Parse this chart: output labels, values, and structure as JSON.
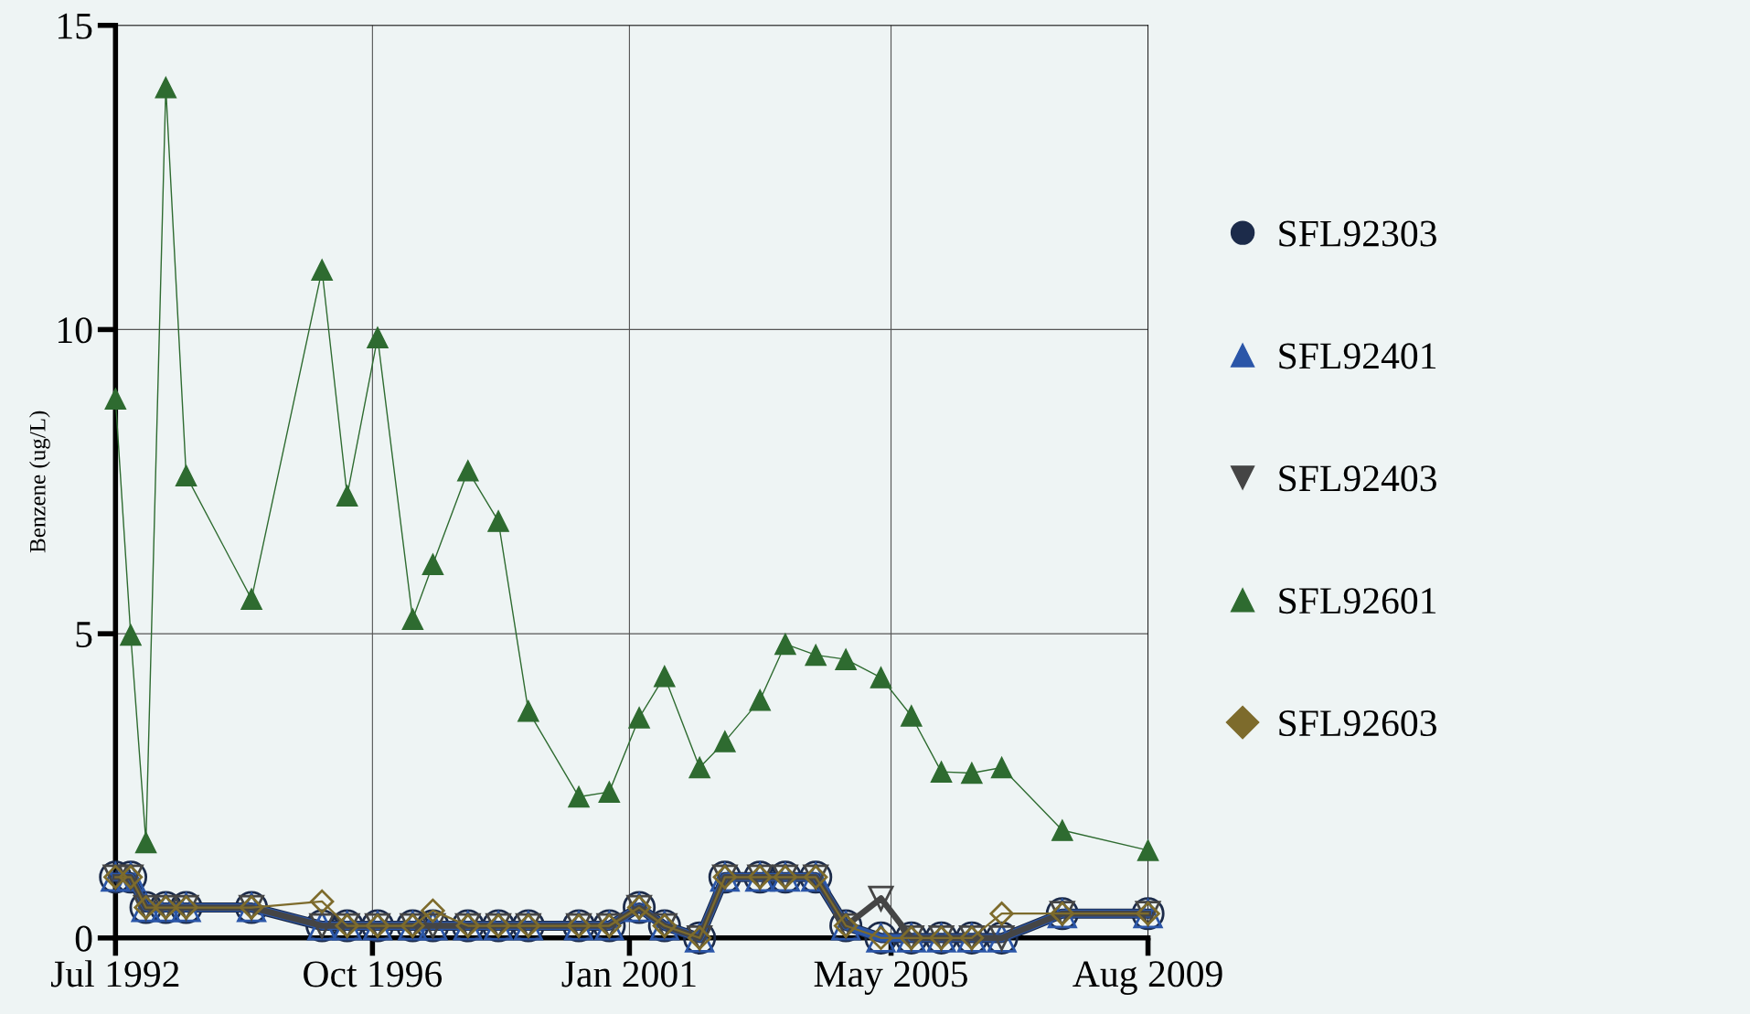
{
  "chart_data": {
    "type": "line",
    "ylabel": "Benzene (ug/L)",
    "x": [
      "1992-07",
      "1992-10",
      "1993-01",
      "1993-05",
      "1993-09",
      "1994-10",
      "1995-12",
      "1996-05",
      "1996-11",
      "1997-06",
      "1997-10",
      "1998-05",
      "1998-11",
      "1999-05",
      "2000-03",
      "2000-09",
      "2001-03",
      "2001-08",
      "2002-03",
      "2002-08",
      "2003-03",
      "2003-08",
      "2004-02",
      "2004-08",
      "2005-03",
      "2005-09",
      "2006-03",
      "2006-09",
      "2007-03",
      "2008-03",
      "2009-08"
    ],
    "series": [
      {
        "name": "SFL92303",
        "color": "#1c2b4a",
        "marker": "circle",
        "values": [
          1.0,
          1.0,
          0.5,
          0.5,
          0.5,
          0.5,
          0.2,
          0.2,
          0.2,
          0.2,
          0.2,
          0.2,
          0.2,
          0.2,
          0.2,
          0.2,
          0.5,
          0.2,
          0,
          1.0,
          1.0,
          1.0,
          1.0,
          0.2,
          0,
          0,
          0,
          0,
          0,
          0.4,
          0.4
        ]
      },
      {
        "name": "SFL92401",
        "color": "#2b56a8",
        "marker": "triangle",
        "values": [
          1.0,
          1.0,
          0.5,
          0.5,
          0.5,
          0.5,
          0.2,
          0.2,
          0.2,
          0.2,
          0.2,
          0.2,
          0.2,
          0.2,
          0.2,
          0.2,
          0.5,
          0.2,
          0,
          1.0,
          1.0,
          1.0,
          1.0,
          0.2,
          0,
          0,
          0,
          0,
          0,
          0.4,
          0.4
        ]
      },
      {
        "name": "SFL92403",
        "color": "#454545",
        "marker": "triangle_down",
        "values": [
          1.0,
          1.0,
          0.5,
          0.5,
          0.5,
          0.5,
          0.2,
          0.2,
          0.2,
          0.2,
          0.2,
          0.2,
          0.2,
          0.2,
          0.2,
          0.2,
          0.5,
          0.2,
          0,
          1.0,
          1.0,
          1.0,
          1.0,
          0.2,
          0.65,
          0,
          0,
          0,
          0,
          0.4,
          0.4
        ]
      },
      {
        "name": "SFL92601",
        "color": "#2e6b30",
        "marker": "triangle",
        "values": [
          8.86,
          4.98,
          1.57,
          13.98,
          7.6,
          5.57,
          10.98,
          7.27,
          9.87,
          5.24,
          6.14,
          7.68,
          6.85,
          3.73,
          2.32,
          2.4,
          3.62,
          4.3,
          2.8,
          3.23,
          3.91,
          4.83,
          4.65,
          4.58,
          4.28,
          3.65,
          2.73,
          2.71,
          2.8,
          1.77,
          1.44
        ]
      },
      {
        "name": "SFL92603",
        "color": "#7d6b2c",
        "marker": "diamond",
        "values": [
          1.0,
          1.0,
          0.5,
          0.5,
          0.5,
          0.5,
          0.6,
          0.2,
          0.2,
          0.2,
          0.45,
          0.2,
          0.2,
          0.2,
          0.2,
          0.2,
          0.5,
          0.2,
          0,
          1.0,
          1.0,
          1.0,
          1.0,
          0.2,
          0,
          0,
          0,
          0,
          0.4,
          0.4,
          0.4
        ]
      }
    ],
    "xlim": [
      "1992-07",
      "2009-08"
    ],
    "xticks": [
      {
        "value": "1992-07",
        "label": "Jul 1992"
      },
      {
        "value": "1996-10",
        "label": "Oct 1996"
      },
      {
        "value": "2001-01",
        "label": "Jan 2001"
      },
      {
        "value": "2005-05",
        "label": "May 2005"
      },
      {
        "value": "2009-08",
        "label": "Aug 2009"
      }
    ],
    "ylim": [
      0,
      15
    ],
    "yticks": [
      0,
      5,
      10,
      15
    ],
    "grid": true,
    "legend": "right",
    "line_style": "solid"
  }
}
